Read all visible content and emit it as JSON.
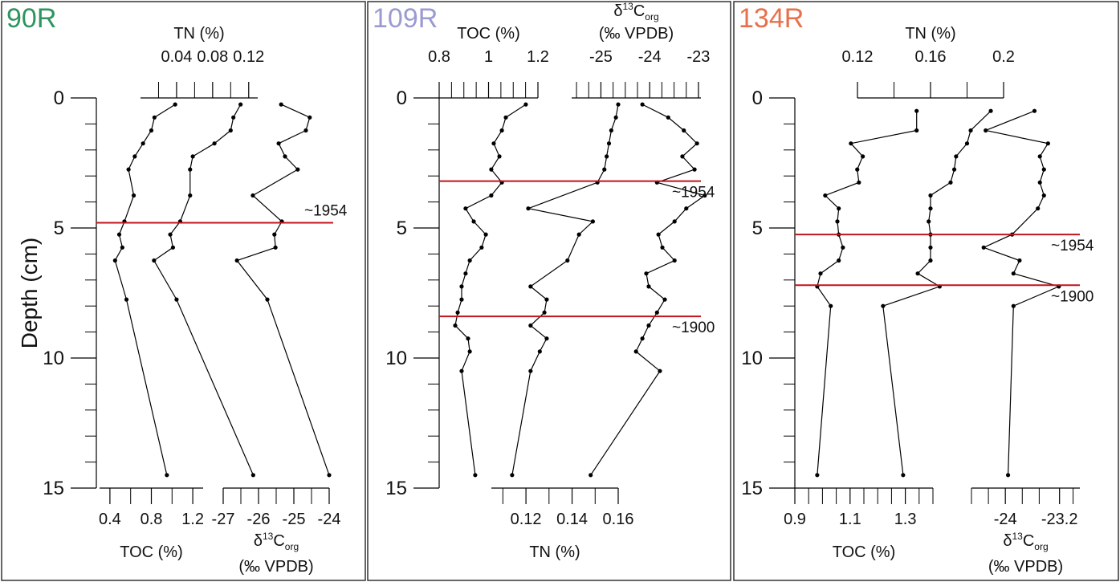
{
  "chart_data": [
    {
      "type": "line",
      "title": "90R",
      "title_color": "#2e9460",
      "ylabel": "Depth (cm)",
      "ylim": [
        0,
        15
      ],
      "yticks": [
        0,
        5,
        10,
        15
      ],
      "yminor": [
        1,
        2,
        3,
        4,
        6,
        7,
        8,
        9,
        11,
        12,
        13,
        14
      ],
      "color": "#000000",
      "event_color": "#c0141b",
      "events": [
        {
          "y": 4.8,
          "label": "~1954"
        }
      ],
      "series": [
        {
          "xaxis": "bottom",
          "xlabel": "TOC (%)",
          "xlim": [
            0.3,
            1.3
          ],
          "xticks": [
            0.4,
            0.8,
            1.2
          ],
          "xminor": [
            0.6,
            1.0
          ],
          "y": [
            0.25,
            0.75,
            1.25,
            1.75,
            2.25,
            2.75,
            3.75,
            4.75,
            5.25,
            5.75,
            6.25,
            7.75,
            14.5
          ],
          "values": [
            1.03,
            0.83,
            0.8,
            0.72,
            0.64,
            0.58,
            0.63,
            0.54,
            0.49,
            0.52,
            0.45,
            0.56,
            0.95
          ]
        },
        {
          "xaxis": "top",
          "xlabel": "TN (%)",
          "xlim": [
            0,
            0.13
          ],
          "xticks": [
            0.04,
            0.08,
            0.12
          ],
          "xminor": [
            0.02,
            0.06,
            0.1
          ],
          "y": [
            0.25,
            0.75,
            1.25,
            1.75,
            2.25,
            2.75,
            3.75,
            4.75,
            5.25,
            5.75,
            6.25,
            7.75,
            14.5
          ],
          "values": [
            0.111,
            0.103,
            0.1,
            0.082,
            0.058,
            0.055,
            0.055,
            0.044,
            0.033,
            0.036,
            0.015,
            0.04,
            0.125
          ]
        },
        {
          "xaxis": "bottom",
          "xlabel": [
            "δ",
            "13",
            "C",
            "org"
          ],
          "xlabel2": "(‰ VPDB)",
          "xlim": [
            -27,
            -24
          ],
          "xticks": [
            -27,
            -26,
            -25,
            -24
          ],
          "xminor": [
            -26.5,
            -25.5,
            -24.5
          ],
          "y": [
            0.25,
            0.75,
            1.25,
            1.75,
            2.25,
            2.75,
            3.75,
            4.75,
            5.25,
            5.75,
            6.25,
            7.75,
            14.5
          ],
          "values": [
            -25.36,
            -24.55,
            -24.66,
            -25.43,
            -25.25,
            -24.89,
            -26.16,
            -25.34,
            -25.55,
            -25.52,
            -26.61,
            -25.75,
            -24.0
          ]
        }
      ]
    },
    {
      "type": "line",
      "title": "109R",
      "title_color": "#9b9bd2",
      "ylim": [
        0,
        15
      ],
      "yticks": [
        0,
        5,
        10,
        15
      ],
      "yminor": [
        1,
        2,
        3,
        4,
        6,
        7,
        8,
        9,
        11,
        12,
        13,
        14
      ],
      "color": "#000000",
      "event_color": "#c0141b",
      "events": [
        {
          "y": 3.2,
          "label": "~1954"
        },
        {
          "y": 8.4,
          "label": "~1900"
        }
      ],
      "series": [
        {
          "xaxis": "top",
          "xlabel": "TOC (%)",
          "xlim": [
            0.8,
            1.2
          ],
          "xticks": [
            0.8,
            1,
            1.2
          ],
          "xminor": [
            0.85,
            0.9,
            0.95,
            1.05,
            1.1,
            1.15
          ],
          "y": [
            0.25,
            0.75,
            1.25,
            1.75,
            2.25,
            2.75,
            3.25,
            3.75,
            4.25,
            4.75,
            5.25,
            5.75,
            6.25,
            6.75,
            7.25,
            7.75,
            8.25,
            8.75,
            9.25,
            9.75,
            10.5,
            14.5
          ],
          "values": [
            1.151,
            1.07,
            1.054,
            1.021,
            1.044,
            1.011,
            1.054,
            1.011,
            0.907,
            0.94,
            0.989,
            0.972,
            0.924,
            0.907,
            0.891,
            0.891,
            0.875,
            0.865,
            0.917,
            0.924,
            0.891,
            0.946
          ]
        },
        {
          "xaxis": "top",
          "xlabel": [
            "δ",
            "13",
            "C",
            "org"
          ],
          "xlabel2": "(‰ VPDB)",
          "xlim": [
            -25.6,
            -22.95
          ],
          "xticks": [
            -25,
            -24,
            -23
          ],
          "xminor": [
            -25.5,
            -25.25,
            -24.75,
            -24.5,
            -24.25,
            -23.75,
            -23.5,
            -23.25
          ],
          "y": [
            0.25,
            0.75,
            1.25,
            1.75,
            2.25,
            2.75,
            3.25,
            3.75,
            4.25,
            4.75,
            5.25,
            5.75,
            6.25,
            6.75,
            7.25,
            7.75,
            8.25,
            8.75,
            9.25,
            9.75,
            10.5,
            14.5
          ],
          "values": [
            -24.15,
            -23.62,
            -23.3,
            -23.03,
            -23.33,
            -23.08,
            -23.85,
            -22.87,
            -23.25,
            -23.49,
            -23.82,
            -23.74,
            -23.49,
            -24.07,
            -24.02,
            -23.69,
            -23.85,
            -24.02,
            -24.15,
            -24.28,
            -23.79,
            -25.21
          ]
        },
        {
          "xaxis": "bottom",
          "xlabel": "TN (%)",
          "xlim": [
            0.105,
            0.16
          ],
          "xticks": [
            0.12,
            0.14,
            0.16
          ],
          "xminor": [
            0.11,
            0.13,
            0.15
          ],
          "y": [
            0.25,
            0.75,
            1.25,
            1.75,
            2.25,
            2.75,
            3.25,
            4.25,
            4.75,
            5.25,
            6.25,
            7.25,
            7.75,
            8.25,
            8.75,
            9.25,
            9.75,
            10.5,
            14.5
          ],
          "values": [
            0.16,
            0.159,
            0.157,
            0.156,
            0.155,
            0.154,
            0.151,
            0.121,
            0.149,
            0.143,
            0.138,
            0.122,
            0.129,
            0.128,
            0.122,
            0.129,
            0.126,
            0.122,
            0.114
          ]
        }
      ]
    },
    {
      "type": "line",
      "title": "134R",
      "title_color": "#e8704a",
      "ylim": [
        0,
        15
      ],
      "yticks": [
        0,
        5,
        10,
        15
      ],
      "yminor": [
        1,
        2,
        3,
        4,
        6,
        7,
        8,
        9,
        11,
        12,
        13,
        14
      ],
      "color": "#000000",
      "event_color": "#c0141b",
      "events": [
        {
          "y": 5.25,
          "label": "~1954"
        },
        {
          "y": 7.2,
          "label": "~1900"
        }
      ],
      "series": [
        {
          "xaxis": "bottom",
          "xlabel": "TOC (%)",
          "xlim": [
            0.9,
            1.4
          ],
          "xticks": [
            0.9,
            1.1,
            1.3
          ],
          "xminor": [
            0.95,
            1.0,
            1.05,
            1.15,
            1.2,
            1.25,
            1.35,
            1.4
          ],
          "y": [
            0.5,
            1.25,
            1.75,
            2.25,
            2.75,
            3.25,
            3.75,
            4.25,
            4.75,
            5.25,
            5.75,
            6.25,
            6.75,
            7.25,
            8,
            14.5
          ],
          "values": [
            1.341,
            1.341,
            1.103,
            1.146,
            1.126,
            1.132,
            1.01,
            1.059,
            1.054,
            1.059,
            1.074,
            1.059,
            0.993,
            0.981,
            1.03,
            0.981
          ]
        },
        {
          "xaxis": "top",
          "xlabel": "TN (%)",
          "xlim": [
            0.12,
            0.2
          ],
          "xticks": [
            0.12,
            0.16,
            0.2
          ],
          "xminor": [
            0.14,
            0.18
          ],
          "y": [
            0.5,
            1.25,
            1.75,
            2.25,
            2.75,
            3.25,
            3.75,
            4.25,
            4.75,
            5.25,
            5.75,
            6.25,
            6.75,
            7.25,
            8,
            14.5
          ],
          "values": [
            0.193,
            0.182,
            0.18,
            0.174,
            0.173,
            0.171,
            0.16,
            0.16,
            0.159,
            0.16,
            0.16,
            0.16,
            0.153,
            0.165,
            0.134,
            0.145
          ]
        },
        {
          "xaxis": "bottom",
          "xlabel": [
            "δ",
            "13",
            "C",
            "org"
          ],
          "xlabel2": "(‰ VPDB)",
          "xlim": [
            -24.5,
            -22.9
          ],
          "xticks": [
            -24,
            -23.2
          ],
          "xminor": [
            -24.5,
            -24.25,
            -23.75,
            -23.5,
            -23
          ],
          "y": [
            0.5,
            1.25,
            1.75,
            2.25,
            2.75,
            3.25,
            3.75,
            4.25,
            5.25,
            5.75,
            6.25,
            6.75,
            7.25,
            8,
            14.5
          ],
          "values": [
            -23.57,
            -24.29,
            -23.37,
            -23.49,
            -23.43,
            -23.49,
            -23.43,
            -23.52,
            -23.9,
            -24.32,
            -23.79,
            -23.88,
            -23.21,
            -23.88,
            -23.96
          ]
        }
      ]
    }
  ]
}
